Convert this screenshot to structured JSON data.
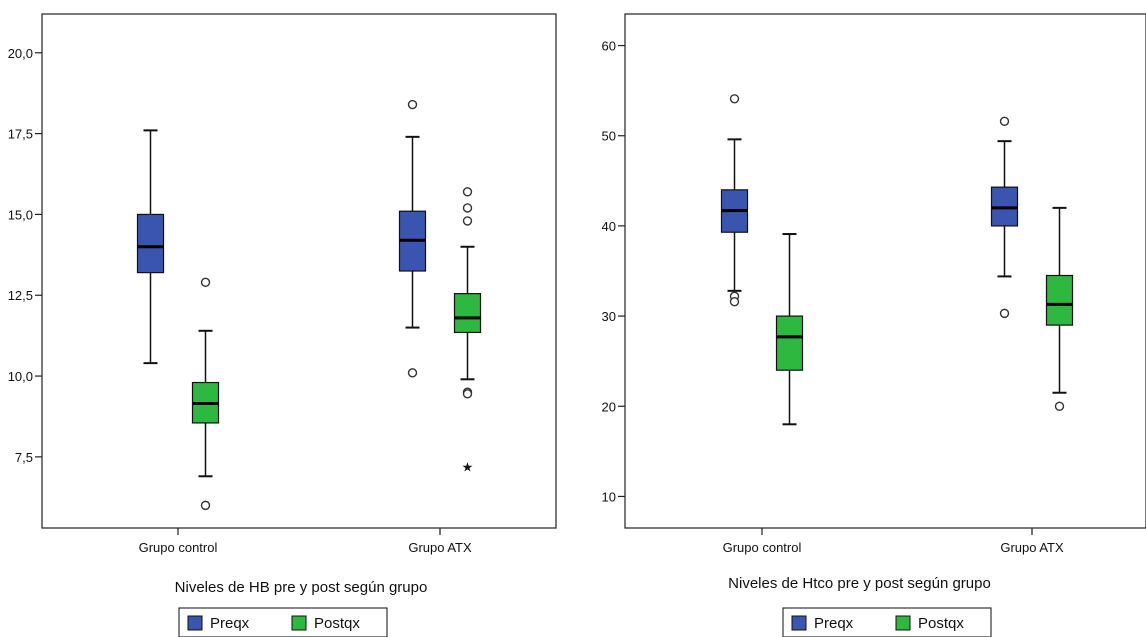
{
  "chart_data": [
    {
      "type": "boxplot",
      "xlabel": "Niveles de HB pre y post según grupo",
      "ylabel": "",
      "ylim": [
        5.3,
        21.2
      ],
      "y_ticks": [
        7.5,
        10.0,
        12.5,
        15.0,
        17.5,
        20.0
      ],
      "y_tick_labels": [
        "7,5",
        "10,0",
        "12,5",
        "15,0",
        "17,5",
        "20,0"
      ],
      "categories": [
        "Grupo control",
        "Grupo ATX"
      ],
      "legend": {
        "position": "bottom",
        "entries": [
          "Preqx",
          "Postqx"
        ]
      },
      "series": [
        {
          "name": "Preqx",
          "color": "#3a55b0",
          "boxes": [
            {
              "whisker_low": 10.4,
              "q1": 13.2,
              "median": 14.0,
              "q3": 15.0,
              "whisker_high": 17.6,
              "outliers": [],
              "extremes": []
            },
            {
              "whisker_low": 11.5,
              "q1": 13.25,
              "median": 14.2,
              "q3": 15.1,
              "whisker_high": 17.4,
              "outliers": [
                18.4,
                10.1
              ],
              "extremes": []
            }
          ]
        },
        {
          "name": "Postqx",
          "color": "#2db83f",
          "boxes": [
            {
              "whisker_low": 6.9,
              "q1": 8.55,
              "median": 9.15,
              "q3": 9.8,
              "whisker_high": 11.4,
              "outliers": [
                12.9,
                6.0
              ],
              "extremes": []
            },
            {
              "whisker_low": 9.9,
              "q1": 11.35,
              "median": 11.8,
              "q3": 12.55,
              "whisker_high": 14.0,
              "outliers": [
                15.7,
                15.2,
                14.8,
                9.5,
                9.45
              ],
              "extremes": [
                7.2
              ]
            }
          ]
        }
      ]
    },
    {
      "type": "boxplot",
      "xlabel": "Niveles de Htco pre y post según grupo",
      "ylabel": "",
      "ylim": [
        6.5,
        63.5
      ],
      "y_ticks": [
        10,
        20,
        30,
        40,
        50,
        60
      ],
      "y_tick_labels": [
        "10",
        "20",
        "30",
        "40",
        "50",
        "60"
      ],
      "categories": [
        "Grupo control",
        "Grupo ATX"
      ],
      "legend": {
        "position": "bottom",
        "entries": [
          "Preqx",
          "Postqx"
        ]
      },
      "series": [
        {
          "name": "Preqx",
          "color": "#3a55b0",
          "boxes": [
            {
              "whisker_low": 32.8,
              "q1": 39.3,
              "median": 41.7,
              "q3": 44.0,
              "whisker_high": 49.6,
              "outliers": [
                54.1,
                32.2,
                31.6
              ],
              "extremes": []
            },
            {
              "whisker_low": 34.4,
              "q1": 40.0,
              "median": 42.0,
              "q3": 44.3,
              "whisker_high": 49.4,
              "outliers": [
                51.6,
                30.3
              ],
              "extremes": []
            }
          ]
        },
        {
          "name": "Postqx",
          "color": "#2db83f",
          "boxes": [
            {
              "whisker_low": 18.0,
              "q1": 24.0,
              "median": 27.7,
              "q3": 30.0,
              "whisker_high": 39.1,
              "outliers": [],
              "extremes": []
            },
            {
              "whisker_low": 21.5,
              "q1": 29.0,
              "median": 31.3,
              "q3": 34.5,
              "whisker_high": 42.0,
              "outliers": [
                20.0
              ],
              "extremes": []
            }
          ]
        }
      ]
    }
  ]
}
